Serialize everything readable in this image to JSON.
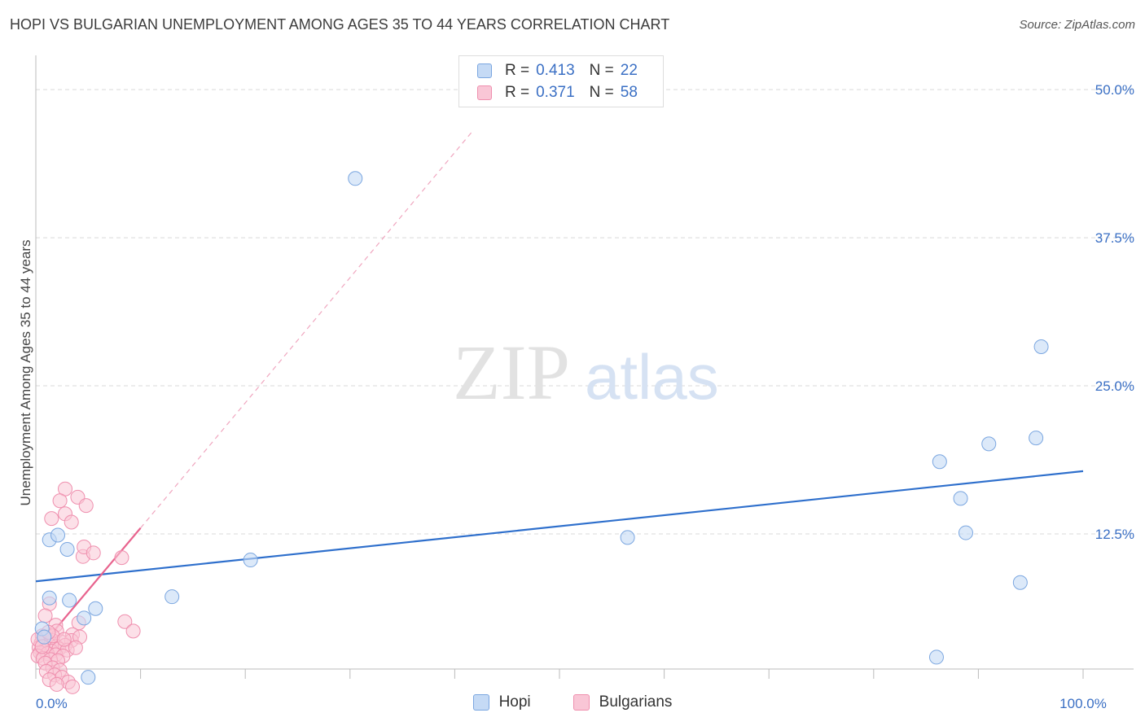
{
  "header": {
    "title": "HOPI VS BULGARIAN UNEMPLOYMENT AMONG AGES 35 TO 44 YEARS CORRELATION CHART",
    "source": "Source: ZipAtlas.com"
  },
  "legend": {
    "hopi": {
      "r_label": "R =",
      "r_value": "0.413",
      "n_label": "N =",
      "n_value": "22"
    },
    "bulgarians": {
      "r_label": "R =",
      "r_value": "0.371",
      "n_label": "N =",
      "n_value": "58"
    }
  },
  "bottom_legend": {
    "hopi": "Hopi",
    "bulgarians": "Bulgarians"
  },
  "watermark": {
    "zip": "ZIP",
    "atlas": "atlas"
  },
  "colors": {
    "hopi_fill": "#c5daf5",
    "hopi_stroke": "#7aa6e0",
    "hopi_line": "#2e6fcc",
    "bulg_fill": "#f9c6d6",
    "bulg_stroke": "#ef8fae",
    "bulg_line": "#e8638e",
    "axis_tick_label": "#3a6fc4",
    "grid": "#d9d9d9"
  },
  "chart_data": {
    "type": "scatter",
    "title": "HOPI VS BULGARIAN UNEMPLOYMENT AMONG AGES 35 TO 44 YEARS CORRELATION CHART",
    "xlabel": "",
    "ylabel": "Unemployment Among Ages 35 to 44 years",
    "xlim": [
      0,
      100
    ],
    "ylim": [
      0,
      52
    ],
    "x_tick_labels": [
      {
        "value": 0,
        "label": "0.0%"
      },
      {
        "value": 100,
        "label": "100.0%"
      }
    ],
    "y_ticks": [
      {
        "value": 12.5,
        "label": "12.5%"
      },
      {
        "value": 25.0,
        "label": "25.0%"
      },
      {
        "value": 37.5,
        "label": "37.5%"
      },
      {
        "value": 50.0,
        "label": "50.0%"
      }
    ],
    "series": [
      {
        "name": "Hopi",
        "R": 0.413,
        "N": 22,
        "points": [
          [
            1.3,
            12.0
          ],
          [
            2.1,
            12.4
          ],
          [
            3.0,
            11.2
          ],
          [
            1.3,
            7.1
          ],
          [
            3.2,
            6.9
          ],
          [
            5.7,
            6.2
          ],
          [
            4.6,
            5.4
          ],
          [
            0.6,
            4.5
          ],
          [
            0.8,
            3.8
          ],
          [
            5.0,
            0.4
          ],
          [
            13.0,
            7.2
          ],
          [
            20.5,
            10.3
          ],
          [
            30.5,
            42.5
          ],
          [
            56.5,
            12.2
          ],
          [
            86.0,
            2.1
          ],
          [
            86.3,
            18.6
          ],
          [
            88.3,
            15.5
          ],
          [
            88.8,
            12.6
          ],
          [
            91.0,
            20.1
          ],
          [
            94.0,
            8.4
          ],
          [
            95.5,
            20.6
          ],
          [
            96.0,
            28.3
          ]
        ],
        "trend": {
          "x": [
            0,
            100
          ],
          "y": [
            8.5,
            17.8
          ]
        }
      },
      {
        "name": "Bulgarians",
        "R": 0.371,
        "N": 58,
        "points": [
          [
            2.8,
            16.3
          ],
          [
            4.0,
            15.6
          ],
          [
            2.3,
            15.3
          ],
          [
            2.8,
            14.2
          ],
          [
            1.5,
            13.8
          ],
          [
            3.4,
            13.5
          ],
          [
            4.5,
            10.6
          ],
          [
            8.2,
            10.5
          ],
          [
            1.3,
            6.6
          ],
          [
            0.9,
            5.6
          ],
          [
            4.1,
            5.0
          ],
          [
            8.5,
            5.1
          ],
          [
            1.9,
            4.8
          ],
          [
            2.0,
            4.3
          ],
          [
            3.5,
            4.0
          ],
          [
            0.6,
            3.9
          ],
          [
            1.0,
            3.7
          ],
          [
            1.6,
            3.5
          ],
          [
            2.4,
            3.4
          ],
          [
            3.4,
            3.5
          ],
          [
            0.5,
            3.3
          ],
          [
            1.2,
            3.2
          ],
          [
            2.0,
            3.0
          ],
          [
            2.8,
            3.1
          ],
          [
            0.3,
            2.9
          ],
          [
            0.8,
            2.7
          ],
          [
            1.5,
            2.6
          ],
          [
            2.2,
            2.8
          ],
          [
            3.0,
            2.7
          ],
          [
            0.4,
            2.5
          ],
          [
            1.1,
            2.4
          ],
          [
            1.9,
            2.3
          ],
          [
            2.6,
            2.2
          ],
          [
            0.2,
            2.2
          ],
          [
            0.7,
            2.0
          ],
          [
            1.4,
            1.9
          ],
          [
            2.1,
            1.8
          ],
          [
            0.9,
            1.6
          ],
          [
            1.6,
            1.2
          ],
          [
            2.3,
            1.0
          ],
          [
            1.0,
            0.9
          ],
          [
            1.8,
            0.6
          ],
          [
            2.5,
            0.4
          ],
          [
            1.3,
            0.2
          ],
          [
            3.1,
            0.0
          ],
          [
            3.5,
            -0.4
          ],
          [
            2.0,
            -0.2
          ],
          [
            4.2,
            3.8
          ],
          [
            0.2,
            3.6
          ],
          [
            3.8,
            2.9
          ],
          [
            1.6,
            3.9
          ],
          [
            0.6,
            3.0
          ],
          [
            2.7,
            3.6
          ],
          [
            1.2,
            4.2
          ],
          [
            4.6,
            11.4
          ],
          [
            5.5,
            10.9
          ],
          [
            4.8,
            14.9
          ],
          [
            9.3,
            4.3
          ]
        ],
        "trend": {
          "x": [
            0,
            10
          ],
          "y": [
            2.5,
            13.0
          ]
        },
        "trend_extension": {
          "x": [
            10,
            41.8
          ],
          "y": [
            13.0,
            46.6
          ]
        }
      }
    ]
  }
}
